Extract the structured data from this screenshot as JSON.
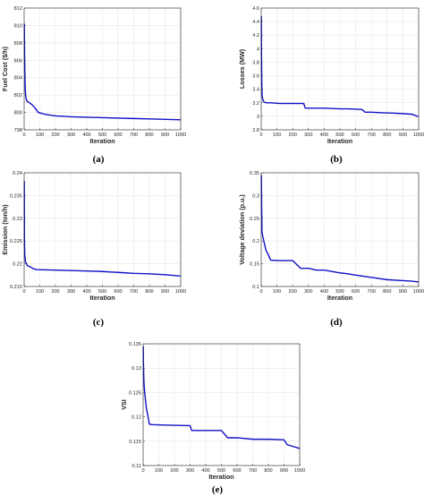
{
  "chart_data": [
    {
      "type": "line",
      "caption": "(a)",
      "xlabel": "Iteration",
      "ylabel": "Fuel Cost ($/h)",
      "xlim": [
        0,
        1000
      ],
      "ylim": [
        798,
        812
      ],
      "xticks": [
        0,
        100,
        200,
        300,
        400,
        500,
        600,
        700,
        800,
        900,
        1000
      ],
      "yticks": [
        798,
        800,
        802,
        804,
        806,
        808,
        810,
        812
      ],
      "grid": true,
      "color": "#1010c8",
      "series": [
        {
          "x": [
            1,
            3,
            5,
            8,
            12,
            18,
            25,
            35,
            50,
            70,
            90,
            110,
            130,
            160,
            200,
            250,
            300,
            400,
            500,
            600,
            700,
            800,
            900,
            1000
          ],
          "y": [
            810.2,
            806.5,
            804.0,
            802.3,
            801.6,
            801.3,
            801.2,
            801.1,
            800.9,
            800.5,
            800.0,
            799.9,
            799.8,
            799.7,
            799.6,
            799.55,
            799.5,
            799.45,
            799.4,
            799.35,
            799.3,
            799.25,
            799.2,
            799.15
          ]
        }
      ]
    },
    {
      "type": "line",
      "caption": "(b)",
      "xlabel": "Iteration",
      "ylabel": "Losses (MW)",
      "xlim": [
        0,
        1000
      ],
      "ylim": [
        2.8,
        4.6
      ],
      "xticks": [
        0,
        100,
        200,
        300,
        400,
        500,
        600,
        700,
        800,
        900,
        1000
      ],
      "yticks": [
        2.8,
        3,
        3.2,
        3.4,
        3.6,
        3.8,
        4,
        4.2,
        4.4,
        4.6
      ],
      "grid": true,
      "color": "#1010c8",
      "series": [
        {
          "x": [
            1,
            2,
            4,
            6,
            10,
            15,
            20,
            30,
            60,
            120,
            270,
            280,
            400,
            500,
            560,
            640,
            660,
            700,
            780,
            800,
            900,
            960,
            990,
            1000
          ],
          "y": [
            4.48,
            3.9,
            3.45,
            3.3,
            3.25,
            3.22,
            3.21,
            3.2,
            3.2,
            3.19,
            3.19,
            3.12,
            3.12,
            3.11,
            3.11,
            3.1,
            3.06,
            3.06,
            3.05,
            3.05,
            3.04,
            3.03,
            3.0,
            3.0
          ]
        }
      ]
    },
    {
      "type": "line",
      "caption": "(c)",
      "xlabel": "Iteration",
      "ylabel": "Emission (ton/h)",
      "xlim": [
        0,
        1000
      ],
      "ylim": [
        0.215,
        0.24
      ],
      "xticks": [
        0,
        100,
        200,
        300,
        400,
        500,
        600,
        700,
        800,
        900,
        1000
      ],
      "yticks": [
        0.215,
        0.22,
        0.225,
        0.23,
        0.235,
        0.24
      ],
      "grid": true,
      "color": "#1010c8",
      "series": [
        {
          "x": [
            1,
            2,
            4,
            8,
            15,
            20,
            40,
            60,
            80,
            200,
            300,
            400,
            500,
            600,
            700,
            800,
            900,
            1000
          ],
          "y": [
            0.2382,
            0.225,
            0.222,
            0.2205,
            0.22,
            0.2196,
            0.2193,
            0.2189,
            0.2187,
            0.2186,
            0.2185,
            0.2184,
            0.2183,
            0.2181,
            0.2179,
            0.2178,
            0.2176,
            0.2173
          ]
        }
      ]
    },
    {
      "type": "line",
      "caption": "(d)",
      "xlabel": "Iteration",
      "ylabel": "Voltage deviation (p.u.)",
      "xlim": [
        0,
        1000
      ],
      "ylim": [
        0.1,
        0.35
      ],
      "xticks": [
        0,
        100,
        200,
        300,
        400,
        500,
        600,
        700,
        800,
        900,
        1000
      ],
      "yticks": [
        0.1,
        0.15,
        0.2,
        0.25,
        0.3,
        0.35
      ],
      "grid": true,
      "color": "#1010c8",
      "series": [
        {
          "x": [
            1,
            3,
            5,
            10,
            20,
            30,
            45,
            60,
            100,
            200,
            250,
            300,
            350,
            400,
            500,
            550,
            600,
            700,
            800,
            900,
            950,
            1000
          ],
          "y": [
            0.345,
            0.27,
            0.22,
            0.21,
            0.195,
            0.18,
            0.17,
            0.158,
            0.157,
            0.157,
            0.14,
            0.14,
            0.136,
            0.136,
            0.13,
            0.128,
            0.125,
            0.12,
            0.115,
            0.113,
            0.112,
            0.11
          ]
        }
      ]
    },
    {
      "type": "line",
      "caption": "(e)",
      "xlabel": "Iteration",
      "ylabel": "VSI",
      "xlim": [
        0,
        1000
      ],
      "ylim": [
        0.11,
        0.135
      ],
      "xticks": [
        0,
        100,
        200,
        300,
        400,
        500,
        600,
        700,
        800,
        900,
        1000
      ],
      "yticks": [
        0.11,
        0.115,
        0.12,
        0.125,
        0.13,
        0.135
      ],
      "grid": true,
      "color": "#1010c8",
      "series": [
        {
          "x": [
            1,
            2,
            5,
            10,
            20,
            40,
            60,
            150,
            300,
            310,
            400,
            500,
            540,
            600,
            700,
            800,
            900,
            920,
            950,
            1000
          ],
          "y": [
            0.1345,
            0.131,
            0.1272,
            0.125,
            0.122,
            0.1185,
            0.1184,
            0.1183,
            0.1182,
            0.1172,
            0.1172,
            0.1172,
            0.1157,
            0.1157,
            0.1154,
            0.1154,
            0.1153,
            0.1143,
            0.114,
            0.1135
          ]
        }
      ]
    }
  ]
}
